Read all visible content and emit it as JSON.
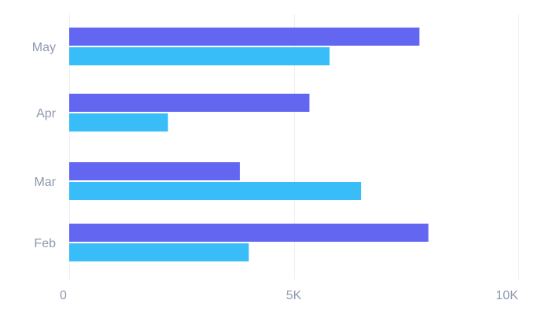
{
  "chart_data": {
    "type": "bar",
    "orientation": "horizontal",
    "categories": [
      "May",
      "Apr",
      "Mar",
      "Feb"
    ],
    "series": [
      {
        "values": [
          7800,
          5350,
          3800,
          8000
        ],
        "color": "#6366f1"
      },
      {
        "values": [
          5800,
          2200,
          6500,
          4000
        ],
        "color": "#38bdf8"
      }
    ],
    "x_ticks": [
      {
        "value": 0,
        "label": "0"
      },
      {
        "value": 5000,
        "label": "5K"
      },
      {
        "value": 10000,
        "label": "10K"
      }
    ],
    "xlim": [
      0,
      10000
    ],
    "grid": "vertical",
    "legend": "none",
    "title": "",
    "xlabel": "",
    "ylabel": ""
  }
}
